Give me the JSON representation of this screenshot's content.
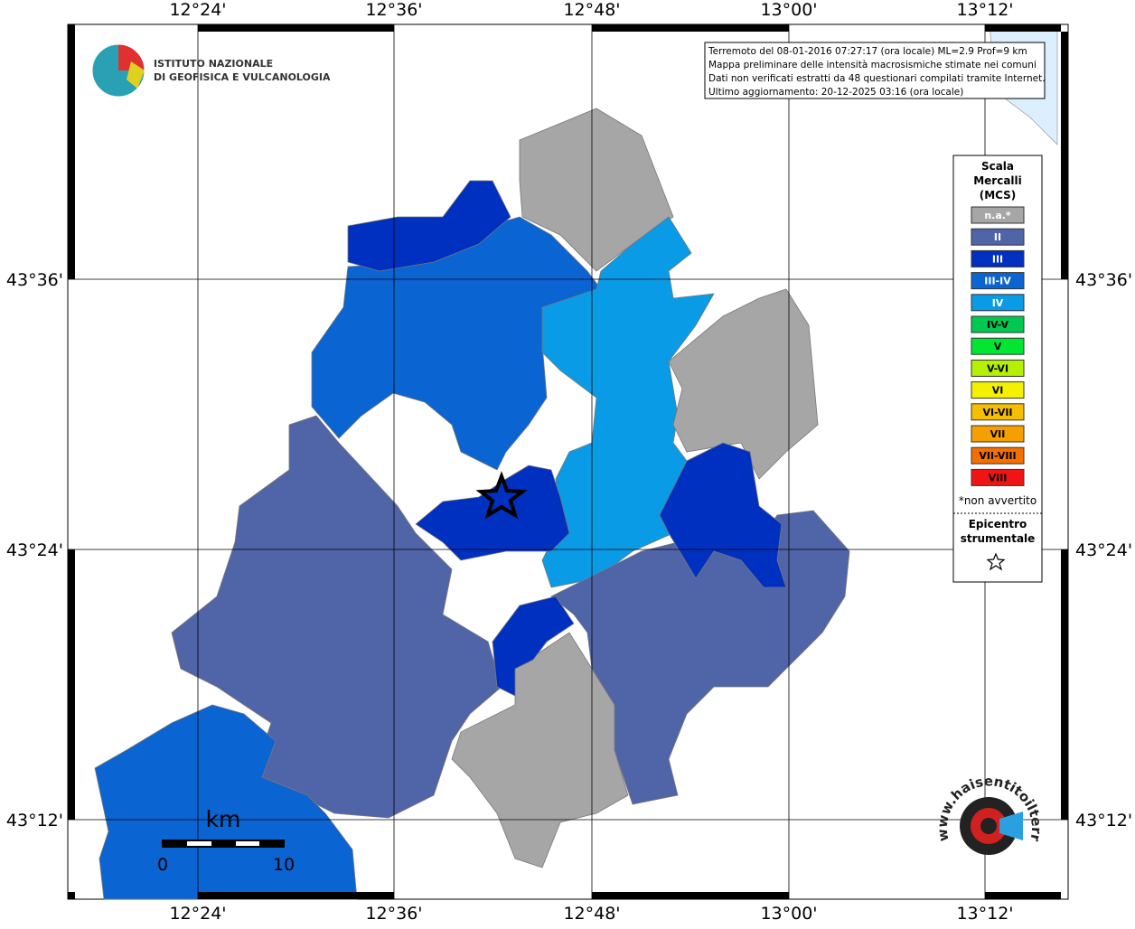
{
  "coordinates": {
    "longitudes": [
      "12°24'",
      "12°36'",
      "12°48'",
      "13°00'",
      "13°12'"
    ],
    "latitudes": [
      "43°36'",
      "43°24'",
      "43°12'"
    ]
  },
  "logo": {
    "line1": "ISTITUTO NAZIONALE",
    "line2": "DI GEOFISICA E VULCANOLOGIA"
  },
  "info": [
    "Terremoto del 08-01-2016 07:27:17 (ora locale) ML=2.9 Prof=9 km",
    "Mappa preliminare delle intensità macrosismiche stimate nei comuni",
    "Dati non verificati estratti da 48 questionari compilati tramite Internet.",
    "Ultimo aggiornamento: 20-12-2025 03:16 (ora locale)"
  ],
  "legend": {
    "title": [
      "Scala",
      "Mercalli",
      "(MCS)"
    ],
    "items": [
      {
        "label": "n.a.*",
        "color": "#a6a6a6"
      },
      {
        "label": "II",
        "color": "#5064a8"
      },
      {
        "label": "III",
        "color": "#0030c0"
      },
      {
        "label": "III-IV",
        "color": "#0a64d2"
      },
      {
        "label": "IV",
        "color": "#0a9be6"
      },
      {
        "label": "IV-V",
        "color": "#00c850"
      },
      {
        "label": "V",
        "color": "#00e632"
      },
      {
        "label": "V-VI",
        "color": "#b4f000"
      },
      {
        "label": "VI",
        "color": "#f5f000"
      },
      {
        "label": "VI-VII",
        "color": "#f5be00"
      },
      {
        "label": "VII",
        "color": "#f5a000"
      },
      {
        "label": "VII-VIII",
        "color": "#f56e00"
      },
      {
        "label": "VIII",
        "color": "#f01414"
      }
    ],
    "note": "*non avvertito",
    "epicentre": [
      "Epicentro",
      "strumentale"
    ]
  },
  "scale_bar": {
    "unit": "km",
    "start": "0",
    "end": "10"
  },
  "site_logo": "www.haisentitoilterremoto.it"
}
